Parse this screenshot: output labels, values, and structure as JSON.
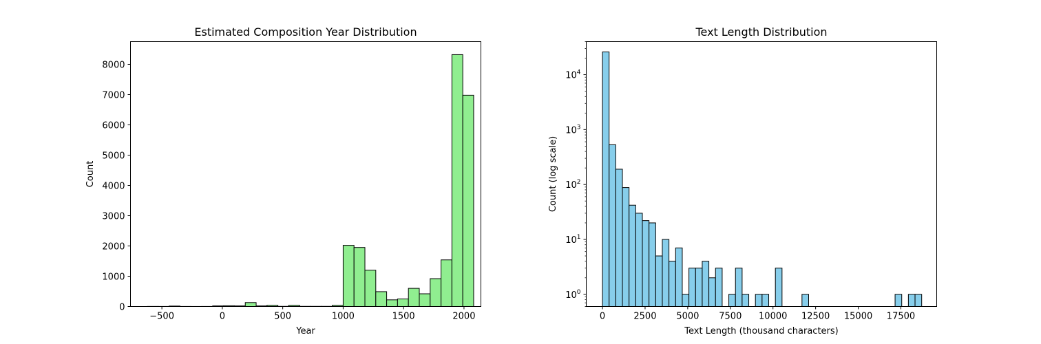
{
  "chart_data": [
    {
      "type": "bar",
      "title": "Estimated Composition Year Distribution",
      "xlabel": "Year",
      "ylabel": "Count",
      "xlim": [
        -760,
        2140
      ],
      "ylim": [
        0,
        8750
      ],
      "xticks": [
        -500,
        0,
        500,
        1000,
        1500,
        2000
      ],
      "xtick_labels": [
        "−500",
        "0",
        "500",
        "1000",
        "1500",
        "2000"
      ],
      "yticks": [
        0,
        1000,
        2000,
        3000,
        4000,
        5000,
        6000,
        7000,
        8000
      ],
      "ytick_labels": [
        "0",
        "1000",
        "2000",
        "3000",
        "4000",
        "5000",
        "6000",
        "7000",
        "8000"
      ],
      "log_y": false,
      "grid": false,
      "color": "#90ee90",
      "edgecolor": "#000000",
      "bins": [
        {
          "x0": -620,
          "x1": -530,
          "count": 3
        },
        {
          "x0": -530,
          "x1": -440,
          "count": 2
        },
        {
          "x0": -440,
          "x1": -350,
          "count": 15
        },
        {
          "x0": -350,
          "x1": -260,
          "count": 2
        },
        {
          "x0": -260,
          "x1": -170,
          "count": 1
        },
        {
          "x0": -170,
          "x1": -80,
          "count": 2
        },
        {
          "x0": -80,
          "x1": 10,
          "count": 20
        },
        {
          "x0": 10,
          "x1": 100,
          "count": 25
        },
        {
          "x0": 100,
          "x1": 190,
          "count": 20
        },
        {
          "x0": 190,
          "x1": 280,
          "count": 130
        },
        {
          "x0": 280,
          "x1": 370,
          "count": 20
        },
        {
          "x0": 370,
          "x1": 460,
          "count": 40
        },
        {
          "x0": 460,
          "x1": 550,
          "count": 5
        },
        {
          "x0": 550,
          "x1": 640,
          "count": 40
        },
        {
          "x0": 640,
          "x1": 730,
          "count": 5
        },
        {
          "x0": 730,
          "x1": 820,
          "count": 5
        },
        {
          "x0": 820,
          "x1": 910,
          "count": 5
        },
        {
          "x0": 910,
          "x1": 1000,
          "count": 40
        },
        {
          "x0": 1000,
          "x1": 1090,
          "count": 2020
        },
        {
          "x0": 1090,
          "x1": 1180,
          "count": 1950
        },
        {
          "x0": 1180,
          "x1": 1270,
          "count": 1200
        },
        {
          "x0": 1270,
          "x1": 1360,
          "count": 490
        },
        {
          "x0": 1360,
          "x1": 1450,
          "count": 220
        },
        {
          "x0": 1450,
          "x1": 1540,
          "count": 250
        },
        {
          "x0": 1540,
          "x1": 1630,
          "count": 600
        },
        {
          "x0": 1630,
          "x1": 1720,
          "count": 420
        },
        {
          "x0": 1720,
          "x1": 1810,
          "count": 920
        },
        {
          "x0": 1810,
          "x1": 1900,
          "count": 1540
        },
        {
          "x0": 1900,
          "x1": 1990,
          "count": 8320
        },
        {
          "x0": 1990,
          "x1": 2080,
          "count": 6980
        }
      ]
    },
    {
      "type": "bar",
      "title": "Text Length Distribution",
      "xlabel": "Text Length (thousand characters)",
      "ylabel": "Count (log scale)",
      "xlim": [
        -950,
        19600
      ],
      "ylim": [
        0.6,
        40000
      ],
      "xticks": [
        0,
        2500,
        5000,
        7500,
        10000,
        12500,
        15000,
        17500
      ],
      "xtick_labels": [
        "0",
        "2500",
        "5000",
        "7500",
        "10000",
        "12500",
        "15000",
        "17500"
      ],
      "yticks": [
        1,
        10,
        100,
        1000,
        10000
      ],
      "ytick_labels": [
        {
          "base": "10",
          "exp": "0"
        },
        {
          "base": "10",
          "exp": "1"
        },
        {
          "base": "10",
          "exp": "2"
        },
        {
          "base": "10",
          "exp": "3"
        },
        {
          "base": "10",
          "exp": "4"
        }
      ],
      "log_y": true,
      "grid": false,
      "color": "#87ceeb",
      "edgecolor": "#000000",
      "bin_width": 390,
      "bins": [
        {
          "x0": 0,
          "count": 26000
        },
        {
          "x0": 390,
          "count": 530
        },
        {
          "x0": 780,
          "count": 190
        },
        {
          "x0": 1170,
          "count": 88
        },
        {
          "x0": 1560,
          "count": 42
        },
        {
          "x0": 1950,
          "count": 30
        },
        {
          "x0": 2340,
          "count": 22
        },
        {
          "x0": 2730,
          "count": 20
        },
        {
          "x0": 3120,
          "count": 5
        },
        {
          "x0": 3510,
          "count": 10
        },
        {
          "x0": 3900,
          "count": 4
        },
        {
          "x0": 4290,
          "count": 7
        },
        {
          "x0": 4680,
          "count": 1
        },
        {
          "x0": 5070,
          "count": 3
        },
        {
          "x0": 5460,
          "count": 3
        },
        {
          "x0": 5850,
          "count": 4
        },
        {
          "x0": 6240,
          "count": 2
        },
        {
          "x0": 6630,
          "count": 3
        },
        {
          "x0": 7410,
          "count": 1
        },
        {
          "x0": 7800,
          "count": 3
        },
        {
          "x0": 8190,
          "count": 1
        },
        {
          "x0": 8970,
          "count": 1
        },
        {
          "x0": 9360,
          "count": 1
        },
        {
          "x0": 10140,
          "count": 3
        },
        {
          "x0": 11700,
          "count": 1
        },
        {
          "x0": 17160,
          "count": 1
        },
        {
          "x0": 17940,
          "count": 1
        },
        {
          "x0": 18330,
          "count": 1
        }
      ]
    }
  ]
}
